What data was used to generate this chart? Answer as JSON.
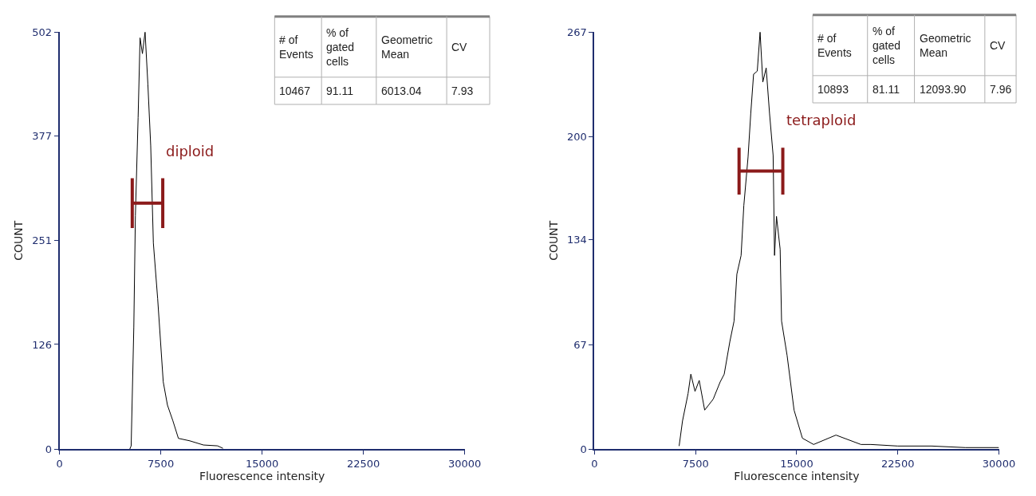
{
  "chart_data": [
    {
      "type": "line",
      "xlabel": "Fluorescence intensity",
      "ylabel": "COUNT",
      "xlim": [
        0,
        30000
      ],
      "xticks": [
        0,
        7500,
        15000,
        22500,
        30000
      ],
      "ylim": [
        0,
        502
      ],
      "yticks": [
        0,
        126,
        251,
        377,
        502
      ],
      "series": [
        {
          "color": "#000000",
          "x": [
            5200,
            5305,
            5502,
            5618,
            5821,
            5965,
            6139,
            6336,
            6544,
            6753,
            6950,
            7268,
            7680,
            7992,
            8398,
            8803,
            9649,
            10656,
            11699,
            12104
          ],
          "values": [
            0,
            4,
            147,
            281,
            399,
            495,
            476,
            502,
            439,
            365,
            248,
            181,
            81,
            53,
            34,
            13,
            10,
            5,
            4,
            1
          ]
        },
        {
          "type": "line",
          "color": "#8b1a1a",
          "x": [
            5386,
            5386,
            5386,
            7645,
            7645,
            7645
          ],
          "values": [
            326,
            266,
            296,
            296,
            326,
            266
          ]
        }
      ],
      "annotations": [
        "diploid",
        "# of\nEvents",
        "% of\ngated\ncells",
        "Geometric\nMean",
        "CV",
        "10467",
        "91.11",
        "6013.04",
        "7.93"
      ]
    },
    {
      "type": "line",
      "xlabel": "Fluorescence intensity",
      "ylabel": "COUNT",
      "xlim": [
        0,
        30000
      ],
      "xticks": [
        0,
        7500,
        15000,
        22500,
        30000
      ],
      "ylim": [
        0,
        267
      ],
      "yticks": [
        0,
        67,
        134,
        200,
        267
      ],
      "series": [
        {
          "color": "#000000",
          "x": [
            6277,
            6526,
            6938,
            7146,
            7454,
            7767,
            8172,
            8804,
            9320,
            9621,
            10043,
            10352,
            10560,
            10873,
            11077,
            11390,
            11592,
            11800,
            12073,
            12282,
            12485,
            12734,
            12983,
            13250,
            13354,
            13499,
            13771,
            13876,
            14287,
            14803,
            15423,
            16252,
            17910,
            19764,
            20500,
            22500,
            25000,
            27500,
            30000
          ],
          "values": [
            2,
            18,
            35.5,
            48,
            37,
            44,
            25,
            32,
            43,
            48,
            69,
            82,
            112,
            124,
            156,
            187,
            215,
            240,
            242,
            267,
            235,
            244,
            215,
            188,
            124,
            149,
            128,
            82,
            60,
            25,
            7,
            3,
            9,
            3,
            3,
            2,
            2,
            1,
            1
          ]
        },
        {
          "type": "line",
          "color": "#8b1a1a",
          "x": [
            10723,
            10723,
            10723,
            13968,
            13968,
            13968
          ],
          "values": [
            193,
            163,
            178,
            178,
            193,
            163
          ]
        }
      ],
      "annotations": [
        "tetraploid",
        "# of\nEvents",
        "% of\ngated\ncells",
        "Geometric\nMean",
        "CV",
        "10893",
        "81.11",
        "12093.90",
        "7.96"
      ]
    }
  ]
}
